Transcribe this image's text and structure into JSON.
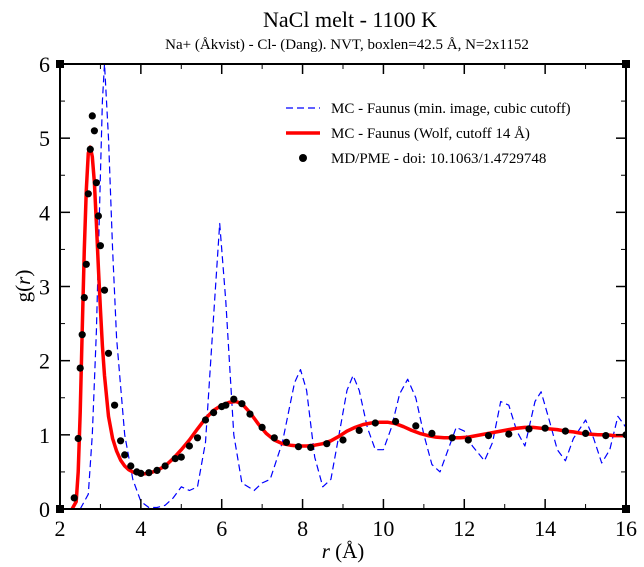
{
  "chart_data": {
    "type": "line",
    "title": "NaCl melt - 1100 K",
    "subtitle": "Na+ (Åkvist) - Cl- (Dang). NVT, boxlen=42.5 Å, N=2x1152",
    "xlabel_var": "r",
    "xlabel_unit": " (Å)",
    "ylabel_prefix": "g(",
    "ylabel_var": "r",
    "ylabel_suffix": ")",
    "xlim": [
      2,
      16
    ],
    "ylim": [
      0,
      6
    ],
    "xticks": [
      2,
      4,
      6,
      8,
      10,
      12,
      14,
      16
    ],
    "yticks": [
      0,
      1,
      2,
      3,
      4,
      5,
      6
    ],
    "xtick_labels": [
      "2",
      "4",
      "6",
      "8",
      "10",
      "12",
      "14",
      "16"
    ],
    "ytick_labels": [
      "0",
      "1",
      "2",
      "3",
      "4",
      "5",
      "6"
    ],
    "grid": false,
    "legend_position": "top-right",
    "series": [
      {
        "name": "MC - Faunus (min. image, cubic cutoff)",
        "style": "dashed",
        "color": "#0000ff",
        "x": [
          2.5,
          2.7,
          2.8,
          2.9,
          3.0,
          3.05,
          3.1,
          3.2,
          3.3,
          3.4,
          3.6,
          3.8,
          4.0,
          4.2,
          4.4,
          4.6,
          4.8,
          5.0,
          5.2,
          5.4,
          5.6,
          5.8,
          5.95,
          6.1,
          6.3,
          6.5,
          6.8,
          7.0,
          7.2,
          7.5,
          7.8,
          7.95,
          8.1,
          8.3,
          8.5,
          8.7,
          8.9,
          9.1,
          9.25,
          9.4,
          9.6,
          9.8,
          10.0,
          10.2,
          10.4,
          10.6,
          10.8,
          11.0,
          11.2,
          11.4,
          11.6,
          11.8,
          12.0,
          12.2,
          12.5,
          12.7,
          12.9,
          13.1,
          13.3,
          13.5,
          13.75,
          13.9,
          14.1,
          14.3,
          14.5,
          14.7,
          15.0,
          15.2,
          15.4,
          15.6,
          15.8,
          16.0
        ],
        "y": [
          0.0,
          0.2,
          1.0,
          2.4,
          4.5,
          5.5,
          6.0,
          5.0,
          3.5,
          2.3,
          1.0,
          0.4,
          0.1,
          0.02,
          0.02,
          0.05,
          0.15,
          0.3,
          0.25,
          0.3,
          0.9,
          2.6,
          3.85,
          2.8,
          1.0,
          0.35,
          0.25,
          0.35,
          0.4,
          0.9,
          1.7,
          1.88,
          1.6,
          0.7,
          0.3,
          0.4,
          1.0,
          1.6,
          1.8,
          1.6,
          1.1,
          0.8,
          0.8,
          1.1,
          1.55,
          1.75,
          1.5,
          1.0,
          0.6,
          0.5,
          0.8,
          1.1,
          1.05,
          0.85,
          0.65,
          0.9,
          1.45,
          1.4,
          1.05,
          0.85,
          1.45,
          1.58,
          1.2,
          0.8,
          0.65,
          0.95,
          1.2,
          0.95,
          0.62,
          0.8,
          1.25,
          1.1
        ]
      },
      {
        "name": "MC - Faunus (Wolf, cutoff 14 Å)",
        "style": "solid",
        "color": "#ff0000",
        "x": [
          2.3,
          2.4,
          2.45,
          2.5,
          2.55,
          2.6,
          2.65,
          2.7,
          2.75,
          2.8,
          2.85,
          2.9,
          2.95,
          3.0,
          3.05,
          3.1,
          3.2,
          3.3,
          3.4,
          3.5,
          3.6,
          3.7,
          3.8,
          3.9,
          4.0,
          4.2,
          4.4,
          4.6,
          4.8,
          5.0,
          5.2,
          5.4,
          5.6,
          5.8,
          6.0,
          6.2,
          6.35,
          6.5,
          6.7,
          6.9,
          7.1,
          7.3,
          7.5,
          7.7,
          7.9,
          8.1,
          8.3,
          8.5,
          8.7,
          8.9,
          9.1,
          9.3,
          9.5,
          9.7,
          9.9,
          10.1,
          10.3,
          10.5,
          10.7,
          10.9,
          11.1,
          11.3,
          11.5,
          11.7,
          11.9,
          12.1,
          12.3,
          12.5,
          12.7,
          12.9,
          13.1,
          13.3,
          13.5,
          13.7,
          13.9,
          14.1,
          14.3,
          14.5,
          14.7,
          14.9,
          15.1,
          15.3,
          15.5,
          15.7,
          15.9,
          16.0
        ],
        "y": [
          0.0,
          0.1,
          0.5,
          1.3,
          2.4,
          3.5,
          4.3,
          4.8,
          4.88,
          4.75,
          4.4,
          3.85,
          3.25,
          2.7,
          2.2,
          1.8,
          1.25,
          0.95,
          0.78,
          0.66,
          0.58,
          0.53,
          0.5,
          0.48,
          0.47,
          0.48,
          0.52,
          0.58,
          0.68,
          0.8,
          0.93,
          1.08,
          1.22,
          1.33,
          1.4,
          1.44,
          1.45,
          1.42,
          1.3,
          1.15,
          1.02,
          0.93,
          0.88,
          0.86,
          0.85,
          0.85,
          0.86,
          0.88,
          0.92,
          0.98,
          1.05,
          1.1,
          1.14,
          1.16,
          1.17,
          1.17,
          1.15,
          1.11,
          1.06,
          1.02,
          0.99,
          0.97,
          0.96,
          0.96,
          0.96,
          0.97,
          0.99,
          1.01,
          1.03,
          1.05,
          1.07,
          1.09,
          1.1,
          1.1,
          1.09,
          1.08,
          1.07,
          1.05,
          1.04,
          1.02,
          1.01,
          1.0,
          1.0,
          0.99,
          0.99,
          0.99
        ]
      },
      {
        "name": "MD/PME - doi: 10.1063/1.4729748",
        "style": "markers",
        "color": "#000000",
        "x": [
          2.35,
          2.45,
          2.5,
          2.55,
          2.6,
          2.65,
          2.7,
          2.75,
          2.8,
          2.85,
          2.9,
          2.95,
          3.0,
          3.1,
          3.2,
          3.35,
          3.5,
          3.6,
          3.75,
          3.9,
          4.0,
          4.2,
          4.4,
          4.6,
          4.85,
          5.0,
          5.2,
          5.4,
          5.6,
          5.8,
          6.0,
          6.1,
          6.3,
          6.5,
          6.7,
          7.0,
          7.3,
          7.6,
          7.9,
          8.2,
          8.6,
          9.0,
          9.4,
          9.8,
          10.3,
          10.8,
          11.2,
          11.7,
          12.1,
          12.6,
          13.1,
          13.6,
          14.0,
          14.5,
          15.0,
          15.5,
          16.0
        ],
        "y": [
          0.15,
          0.95,
          1.9,
          2.35,
          2.85,
          3.3,
          4.25,
          4.85,
          5.3,
          5.1,
          4.4,
          3.95,
          3.55,
          2.95,
          2.1,
          1.4,
          0.92,
          0.73,
          0.58,
          0.5,
          0.48,
          0.49,
          0.52,
          0.58,
          0.68,
          0.7,
          0.85,
          0.96,
          1.2,
          1.3,
          1.38,
          1.4,
          1.48,
          1.42,
          1.28,
          1.1,
          0.96,
          0.9,
          0.84,
          0.83,
          0.88,
          0.93,
          1.06,
          1.16,
          1.18,
          1.12,
          1.02,
          0.96,
          0.93,
          0.99,
          1.01,
          1.08,
          1.09,
          1.05,
          1.02,
          0.99,
          1.0
        ]
      }
    ]
  }
}
